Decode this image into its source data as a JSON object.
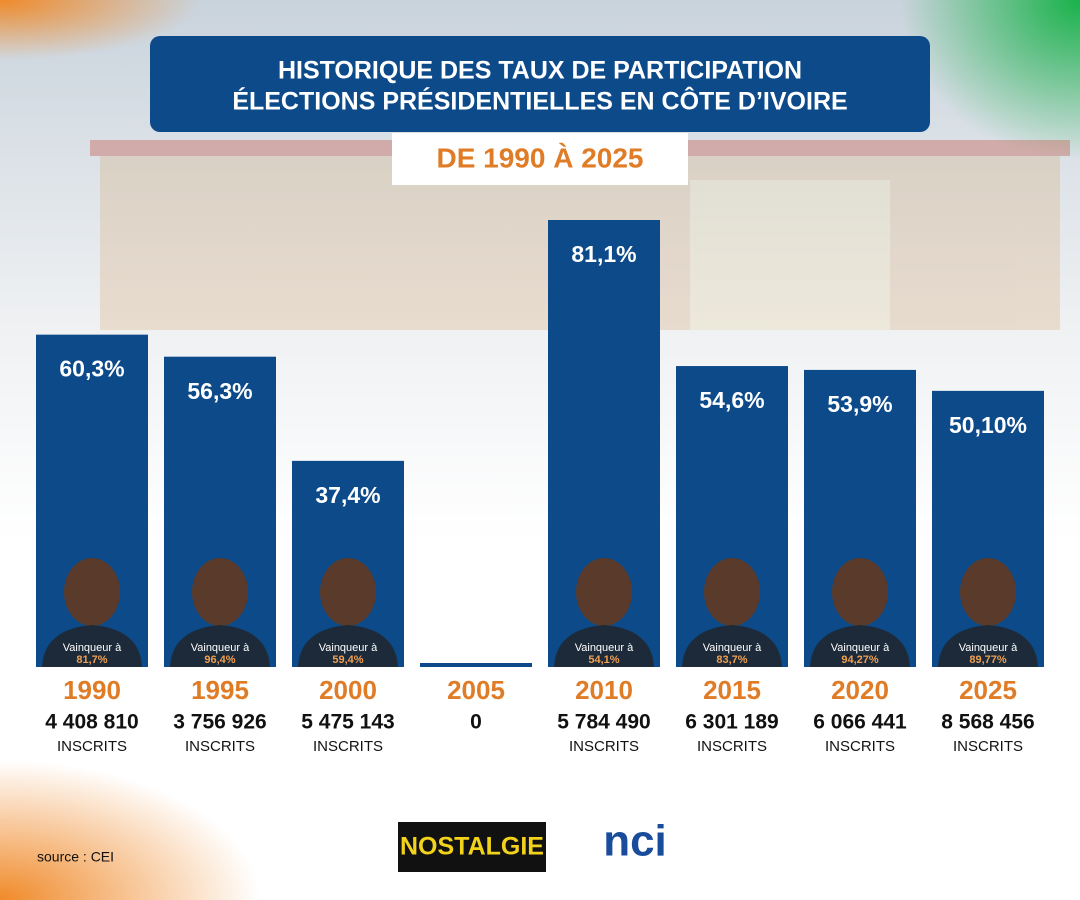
{
  "chart_data": {
    "type": "bar",
    "title": [
      "HISTORIQUE DES TAUX DE PARTICIPATION",
      "ÉLECTIONS PRÉSIDENTIELLES EN CÔTE D’IVOIRE"
    ],
    "subtitle": "DE 1990 À 2025",
    "categories": [
      "1990",
      "1995",
      "2000",
      "2005",
      "2010",
      "2015",
      "2020",
      "2025"
    ],
    "values": [
      60.3,
      56.3,
      37.4,
      0,
      81.1,
      54.6,
      53.9,
      50.1
    ],
    "value_labels": [
      "60,3%",
      "56,3%",
      "37,4%",
      null,
      "81,1%",
      "54,6%",
      "53,9%",
      "50,10%"
    ],
    "color": "#0d4a8a",
    "ylim": [
      0,
      85
    ],
    "registered": [
      "4 408 810",
      "3 756 926",
      "5 475 143",
      "0",
      "5 784 490",
      "6 301 189",
      "6 066 441",
      "8 568 456"
    ],
    "registered_units": [
      "INSCRITS",
      "INSCRITS",
      "INSCRITS",
      null,
      "INSCRITS",
      "INSCRITS",
      "INSCRITS",
      "INSCRITS"
    ],
    "winner_label": "Vainqueur à",
    "winner_share": [
      "81,7%",
      "96,4%",
      "59,4%",
      null,
      "54,1%",
      "83,7%",
      "94,27%",
      "89,77%"
    ],
    "source": "source : CEI",
    "logos": [
      "NOSTALGIE",
      "nci"
    ]
  }
}
